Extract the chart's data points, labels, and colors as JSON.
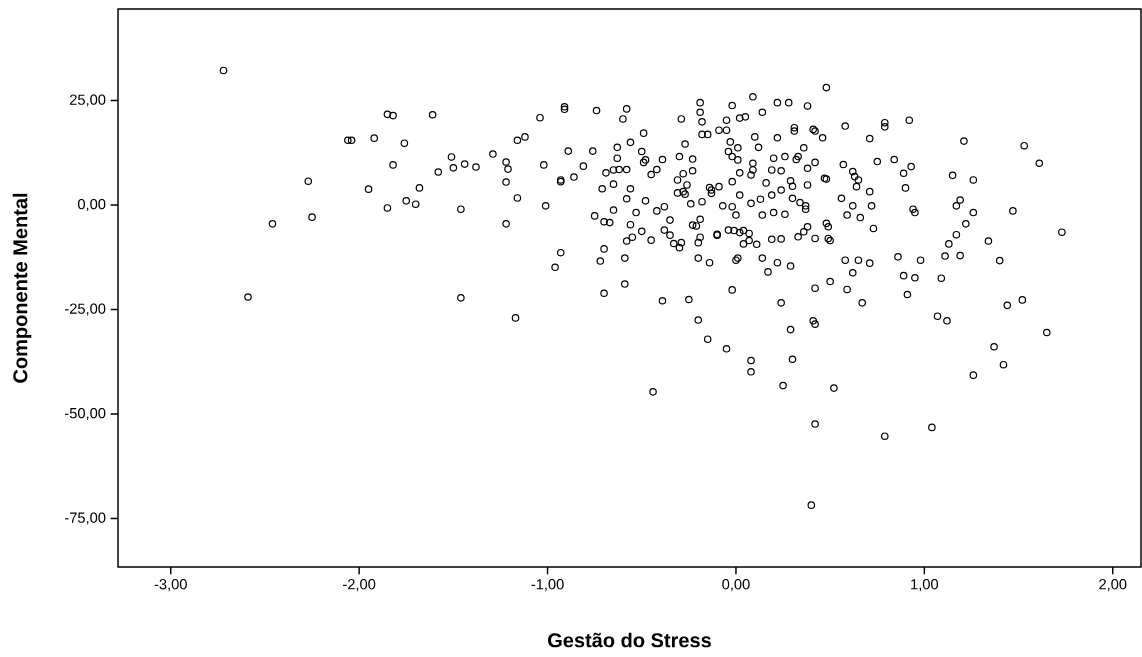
{
  "chart_data": {
    "type": "scatter",
    "xlabel": "Gestão do Stress",
    "ylabel": "Componente Mental",
    "color": "#000000",
    "marker": "circle",
    "xlim": [
      -3.28,
      2.15
    ],
    "ylim": [
      -86.6,
      46.9
    ],
    "xticks": [
      {
        "value": -3,
        "label": "-3,00"
      },
      {
        "value": -2,
        "label": "-2,00"
      },
      {
        "value": -1,
        "label": "-1,00"
      },
      {
        "value": 0,
        "label": "0,00"
      },
      {
        "value": 1,
        "label": "1,00"
      },
      {
        "value": 2,
        "label": "2,00"
      }
    ],
    "yticks": [
      {
        "value": 25,
        "label": "25,00"
      },
      {
        "value": 0,
        "label": "0,00"
      },
      {
        "value": -25,
        "label": "-25,00"
      },
      {
        "value": -50,
        "label": "-50,00"
      },
      {
        "value": -75,
        "label": "-75,00"
      }
    ],
    "x": [
      -2.72,
      -1.85,
      -1.82,
      -1.61,
      -2.06,
      -2.04,
      -1.92,
      -1.76,
      -1.51,
      -1.5,
      -1.44,
      -1.38,
      -1.58,
      -1.82,
      -1.29,
      -1.22,
      -1.21,
      -1.22,
      -1.16,
      -1.16,
      -1.17,
      -2.27,
      -1.95,
      -1.68,
      -1.75,
      -1.7,
      -1.85,
      -1.46,
      -2.25,
      -2.46,
      -1.22,
      -2.59,
      -1.46,
      -1.04,
      -0.91,
      -0.91,
      -0.74,
      -0.58,
      -0.6,
      -0.19,
      -0.19,
      -0.18,
      -0.18,
      -0.15,
      -0.29,
      -0.09,
      -1.12,
      -1.02,
      -0.89,
      -0.76,
      -0.81,
      -0.86,
      -0.93,
      -0.93,
      -1.01,
      -0.63,
      -0.63,
      -0.56,
      -0.49,
      -0.5,
      -0.49,
      -0.48,
      -0.39,
      -0.42,
      -0.45,
      -0.69,
      -0.65,
      -0.62,
      -0.58,
      -0.65,
      -0.71,
      -0.56,
      -0.58,
      -0.48,
      -0.27,
      -0.3,
      -0.23,
      -0.23,
      -0.28,
      -0.31,
      -0.26,
      -0.28,
      -0.31,
      -0.27,
      -0.24,
      -0.18,
      -0.13,
      -0.13,
      -0.38,
      -0.42,
      -0.65,
      -0.75,
      -0.7,
      -0.67,
      -0.53,
      -0.56,
      -0.5,
      -0.55,
      -0.58,
      -0.45,
      -0.35,
      -0.38,
      -0.35,
      -0.33,
      -0.29,
      -0.3,
      -0.23,
      -0.21,
      -0.19,
      -0.19,
      -0.2,
      -0.1,
      -0.2,
      -0.14,
      -0.93,
      -0.96,
      -0.7,
      -0.72,
      -0.59,
      -0.59,
      -0.7,
      -0.39,
      -0.25,
      -0.2,
      -0.15,
      -0.44,
      0.48,
      0.09,
      -0.02,
      0.22,
      0.28,
      0.38,
      0.14,
      0.02,
      0.05,
      -0.05,
      -0.05,
      0.58,
      0.79,
      0.79,
      0.31,
      0.31,
      0.41,
      0.42,
      0.46,
      0.71,
      0.1,
      0.12,
      0.22,
      0.36,
      -0.03,
      -0.04,
      0.01,
      -0.02,
      0.01,
      0.2,
      0.26,
      0.33,
      0.32,
      0.42,
      0.38,
      0.09,
      0.09,
      0.02,
      0.08,
      0.19,
      0.24,
      0.57,
      0.62,
      0.63,
      0.65,
      0.64,
      0.75,
      0.84,
      0.47,
      0.48,
      0.16,
      0.29,
      0.3,
      0.38,
      0.24,
      0.19,
      -0.02,
      0.02,
      -0.09,
      -0.14,
      0.08,
      0.13,
      0.3,
      0.34,
      0.37,
      0.37,
      0.56,
      0.62,
      0.59,
      0.66,
      0.71,
      0.72,
      0.73,
      -0.07,
      -0.02,
      0.0,
      0.14,
      0.2,
      0.26,
      0.48,
      0.49,
      0.38,
      0.36,
      -0.1,
      -0.04,
      -0.01,
      0.04,
      0.07,
      0.02,
      0.04,
      0.07,
      0.11,
      0.19,
      0.24,
      0.33,
      0.42,
      0.49,
      0.5,
      0.0,
      0.01,
      0.14,
      0.22,
      0.29,
      0.17,
      0.58,
      0.65,
      0.71,
      0.62,
      0.86,
      -0.02,
      0.24,
      0.42,
      0.5,
      0.59,
      0.67,
      -0.05,
      0.29,
      0.41,
      0.42,
      0.08,
      0.08,
      0.3,
      0.25,
      0.52,
      0.42,
      0.79,
      0.4,
      0.92,
      1.21,
      1.53,
      1.61,
      0.93,
      0.89,
      0.9,
      1.15,
      1.26,
      1.19,
      1.17,
      1.26,
      1.22,
      1.17,
      1.13,
      0.94,
      0.95,
      1.47,
      1.73,
      1.34,
      1.4,
      0.98,
      1.11,
      1.19,
      0.89,
      0.95,
      1.09,
      0.91,
      1.07,
      1.12,
      1.44,
      1.52,
      1.65,
      1.37,
      1.42,
      1.26,
      1.04
    ],
    "values": [
      32.2,
      21.7,
      21.4,
      21.6,
      15.5,
      15.5,
      16.0,
      14.8,
      11.5,
      8.9,
      9.8,
      9.1,
      7.9,
      9.6,
      12.2,
      10.3,
      8.6,
      5.5,
      15.5,
      1.7,
      -27.0,
      5.7,
      3.8,
      4.1,
      1.0,
      0.2,
      -0.7,
      -1.0,
      -2.9,
      -4.5,
      -4.5,
      -22.0,
      -22.2,
      20.9,
      23.5,
      22.9,
      22.6,
      23.0,
      20.6,
      24.5,
      22.2,
      19.9,
      16.9,
      16.9,
      20.6,
      17.9,
      16.3,
      9.6,
      12.9,
      12.9,
      9.3,
      6.7,
      6.0,
      5.6,
      -0.2,
      13.8,
      11.2,
      15.0,
      17.2,
      12.8,
      10.2,
      10.8,
      10.9,
      8.5,
      7.3,
      7.7,
      8.4,
      8.5,
      8.5,
      5.0,
      3.9,
      3.9,
      1.5,
      1.0,
      14.6,
      11.6,
      11.0,
      8.2,
      7.5,
      6.0,
      4.8,
      3.2,
      2.9,
      2.6,
      0.3,
      0.8,
      3.6,
      2.8,
      -0.4,
      -1.4,
      -1.2,
      -2.6,
      -4.0,
      -4.2,
      -1.8,
      -4.7,
      -6.3,
      -7.7,
      -8.6,
      -8.4,
      -3.6,
      -6.0,
      -7.2,
      -9.2,
      -9.0,
      -10.2,
      -4.8,
      -5.0,
      -3.4,
      -7.7,
      -9.0,
      -7.2,
      -12.7,
      -13.8,
      -11.4,
      -14.9,
      -10.5,
      -13.4,
      -12.7,
      -18.9,
      -21.1,
      -22.9,
      -22.6,
      -27.5,
      -32.1,
      -44.7,
      28.1,
      25.9,
      23.8,
      24.5,
      24.5,
      23.7,
      22.2,
      20.8,
      21.1,
      20.3,
      17.9,
      18.9,
      19.7,
      18.7,
      18.5,
      17.7,
      18.1,
      17.7,
      16.1,
      15.9,
      16.3,
      13.8,
      16.1,
      13.7,
      15.1,
      12.8,
      13.7,
      11.6,
      10.8,
      11.2,
      11.6,
      11.6,
      10.9,
      10.2,
      8.8,
      10.0,
      8.4,
      7.7,
      7.2,
      8.4,
      8.2,
      9.7,
      8.0,
      6.8,
      6.0,
      4.4,
      10.4,
      10.9,
      6.4,
      6.2,
      5.3,
      5.8,
      4.5,
      4.8,
      3.6,
      2.4,
      5.6,
      2.4,
      4.4,
      4.2,
      0.4,
      1.4,
      1.6,
      0.6,
      -0.2,
      -1.0,
      1.6,
      -0.2,
      -2.4,
      -3.0,
      3.2,
      -0.2,
      -5.6,
      -0.2,
      -0.4,
      -2.4,
      -2.4,
      -1.8,
      -2.2,
      -4.4,
      -5.2,
      -5.2,
      -6.4,
      -7.0,
      -6.0,
      -6.1,
      -6.1,
      -6.8,
      -6.6,
      -9.3,
      -8.5,
      -9.4,
      -8.2,
      -8.1,
      -7.6,
      -8.0,
      -8.0,
      -8.5,
      -13.2,
      -12.7,
      -12.7,
      -13.8,
      -14.6,
      -16.0,
      -13.2,
      -13.2,
      -13.9,
      -16.2,
      -12.4,
      -20.3,
      -23.4,
      -19.9,
      -18.3,
      -20.2,
      -23.4,
      -34.4,
      -29.8,
      -27.7,
      -28.5,
      -37.2,
      -39.9,
      -36.9,
      -43.2,
      -43.8,
      -52.4,
      -55.3,
      -71.8,
      20.3,
      15.3,
      14.2,
      10.0,
      9.2,
      7.6,
      4.1,
      7.1,
      6.0,
      1.2,
      -0.2,
      -1.8,
      -4.5,
      -7.1,
      -9.3,
      -1.0,
      -1.8,
      -1.4,
      -6.5,
      -8.6,
      -13.3,
      -13.2,
      -12.2,
      -12.1,
      -16.9,
      -17.4,
      -17.5,
      -21.4,
      -26.6,
      -27.7,
      -24.0,
      -22.7,
      -30.5,
      -33.9,
      -38.2,
      -40.7,
      -53.2
    ]
  }
}
